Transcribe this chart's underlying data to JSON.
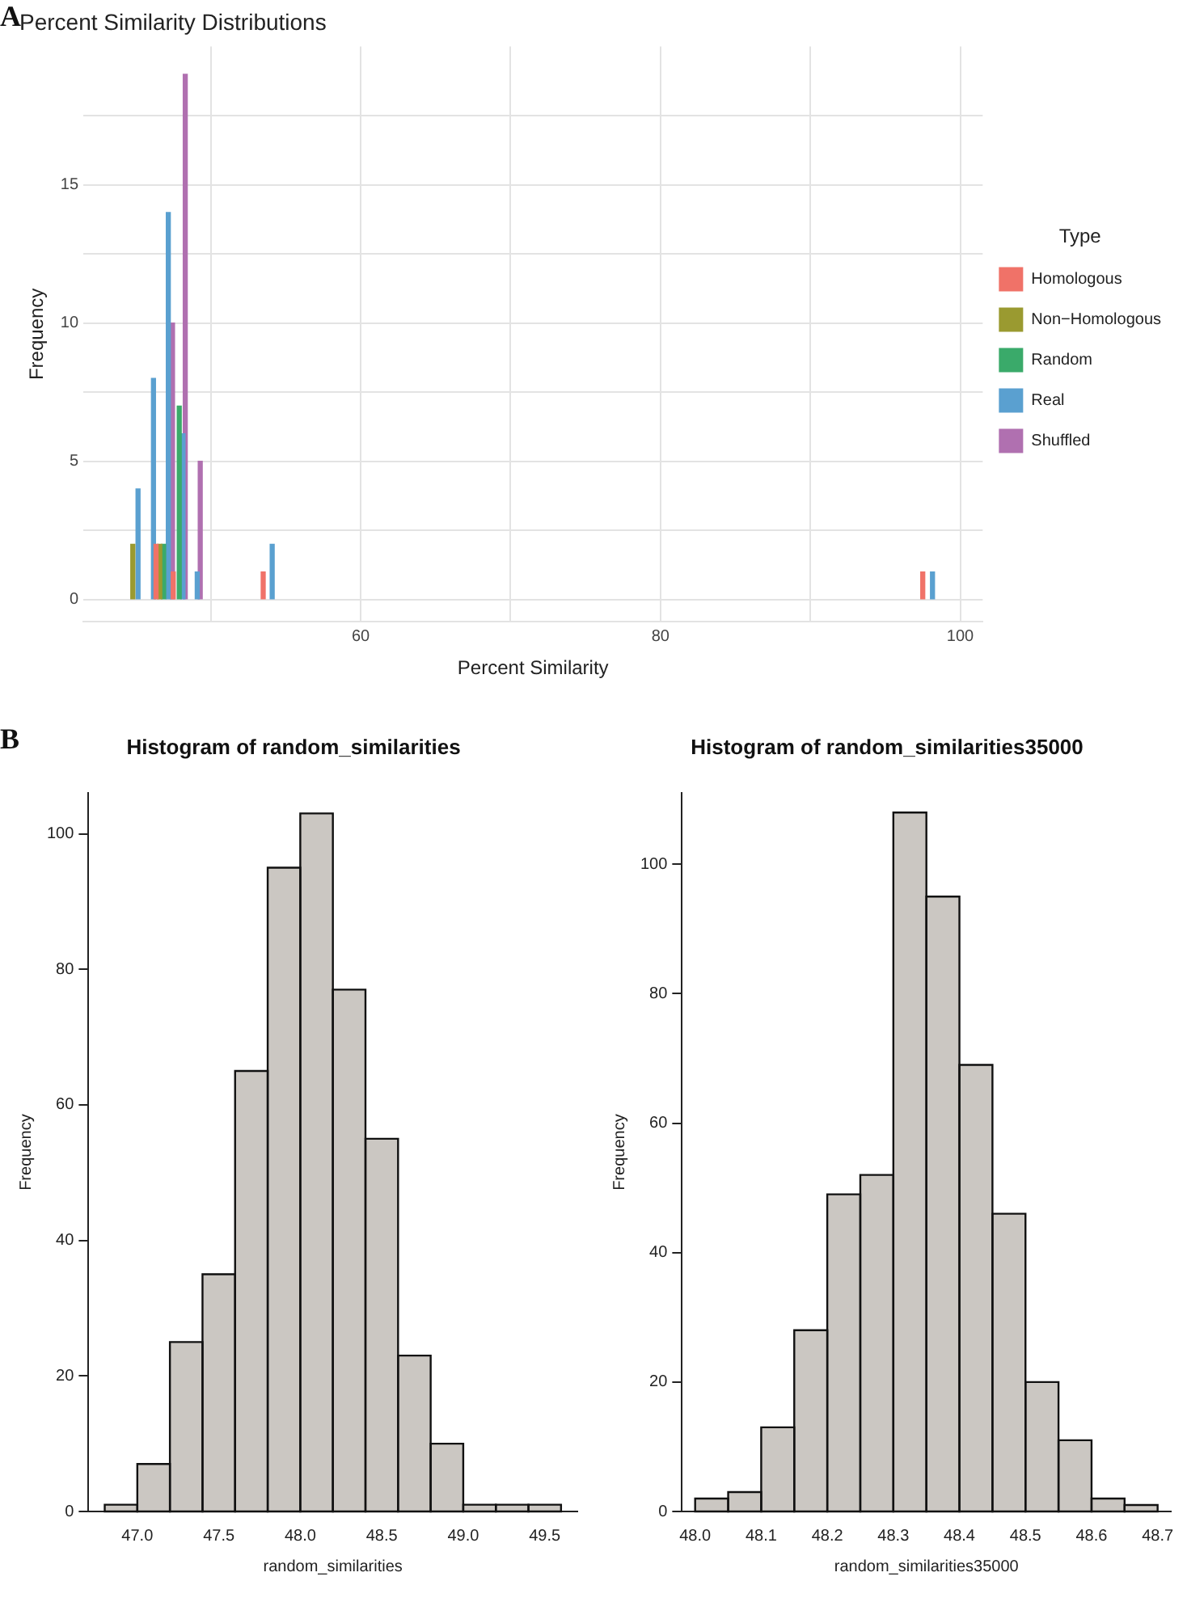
{
  "chart_data": [
    {
      "type": "bar",
      "title": "Percent Similarity Distributions",
      "xlabel": "Percent Similarity",
      "ylabel": "Frequency",
      "legend_title": "Type",
      "annotations": [
        "A"
      ],
      "series": [
        {
          "name": "Homologous",
          "color": "#f07268",
          "x": [
            46.35,
            47.5,
            53.5,
            97.5
          ],
          "values": [
            2,
            1,
            1,
            1
          ]
        },
        {
          "name": "Non−Homologous",
          "color": "#9a9a30",
          "x": [
            44.8,
            46.6
          ],
          "values": [
            2,
            2
          ]
        },
        {
          "name": "Random",
          "color": "#3aaa6a",
          "x": [
            46.86,
            47.9
          ],
          "values": [
            2,
            7
          ]
        },
        {
          "name": "Real",
          "color": "#5aa0d0",
          "x": [
            45.15,
            46.18,
            47.17,
            48.15,
            49.1,
            54.1,
            98.15
          ],
          "values": [
            4,
            8,
            14,
            6,
            1,
            2,
            1
          ]
        },
        {
          "name": "Shuffled",
          "color": "#b070b0",
          "x": [
            47.45,
            48.3,
            49.3
          ],
          "values": [
            10,
            19,
            5
          ]
        }
      ],
      "xlim": [
        41.5,
        101.5
      ],
      "xticks": [
        {
          "value": 50,
          "label": null
        },
        60,
        {
          "value": 70,
          "label": null
        },
        80,
        {
          "value": 90,
          "label": null
        },
        100
      ],
      "ylim": [
        -0.8,
        20
      ],
      "yticks": [
        0,
        {
          "value": 2.5,
          "label": null
        },
        5,
        {
          "value": 7.5,
          "label": null
        },
        10,
        {
          "value": 12.5,
          "label": null
        },
        15,
        {
          "value": 17.5,
          "label": null
        }
      ],
      "grid": true,
      "legend": "right"
    },
    {
      "type": "histogram",
      "title": "Histogram of random_similarities",
      "xlabel": "random_similarities",
      "ylabel": "Frequency",
      "annotations": [
        "B"
      ],
      "color": "#cbc7c2",
      "bins": [
        46.8,
        47.0,
        47.2,
        47.4,
        47.6,
        47.8,
        48.0,
        48.2,
        48.4,
        48.6,
        48.8,
        49.0,
        49.2,
        49.4,
        49.6
      ],
      "values": [
        1,
        7,
        25,
        35,
        65,
        95,
        103,
        77,
        55,
        23,
        10,
        1,
        1,
        1
      ],
      "xlim": [
        46.7,
        49.7
      ],
      "xticks": [
        {
          "value": 47,
          "label": "47.0"
        },
        47.5,
        {
          "value": 48,
          "label": "48.0"
        },
        48.5,
        {
          "value": 49,
          "label": "49.0"
        },
        49.5
      ],
      "ylim": [
        0,
        106
      ],
      "yticks": [
        0,
        20,
        40,
        60,
        80,
        100
      ]
    },
    {
      "type": "histogram",
      "title": "Histogram of random_similarities35000",
      "xlabel": "random_similarities35000",
      "ylabel": "Frequency",
      "color": "#cbc7c2",
      "bins": [
        48.0,
        48.05,
        48.1,
        48.15,
        48.2,
        48.25,
        48.3,
        48.35,
        48.4,
        48.45,
        48.5,
        48.55,
        48.6,
        48.65,
        48.7
      ],
      "values": [
        2,
        3,
        13,
        28,
        49,
        52,
        108,
        95,
        69,
        46,
        20,
        11,
        2,
        1
      ],
      "xlim": [
        47.98,
        48.72
      ],
      "xticks": [
        {
          "value": 48,
          "label": "48.0"
        },
        48.1,
        48.2,
        48.3,
        48.4,
        48.5,
        48.6,
        48.7
      ],
      "ylim": [
        0,
        111
      ],
      "yticks": [
        0,
        20,
        40,
        60,
        80,
        100
      ]
    }
  ]
}
